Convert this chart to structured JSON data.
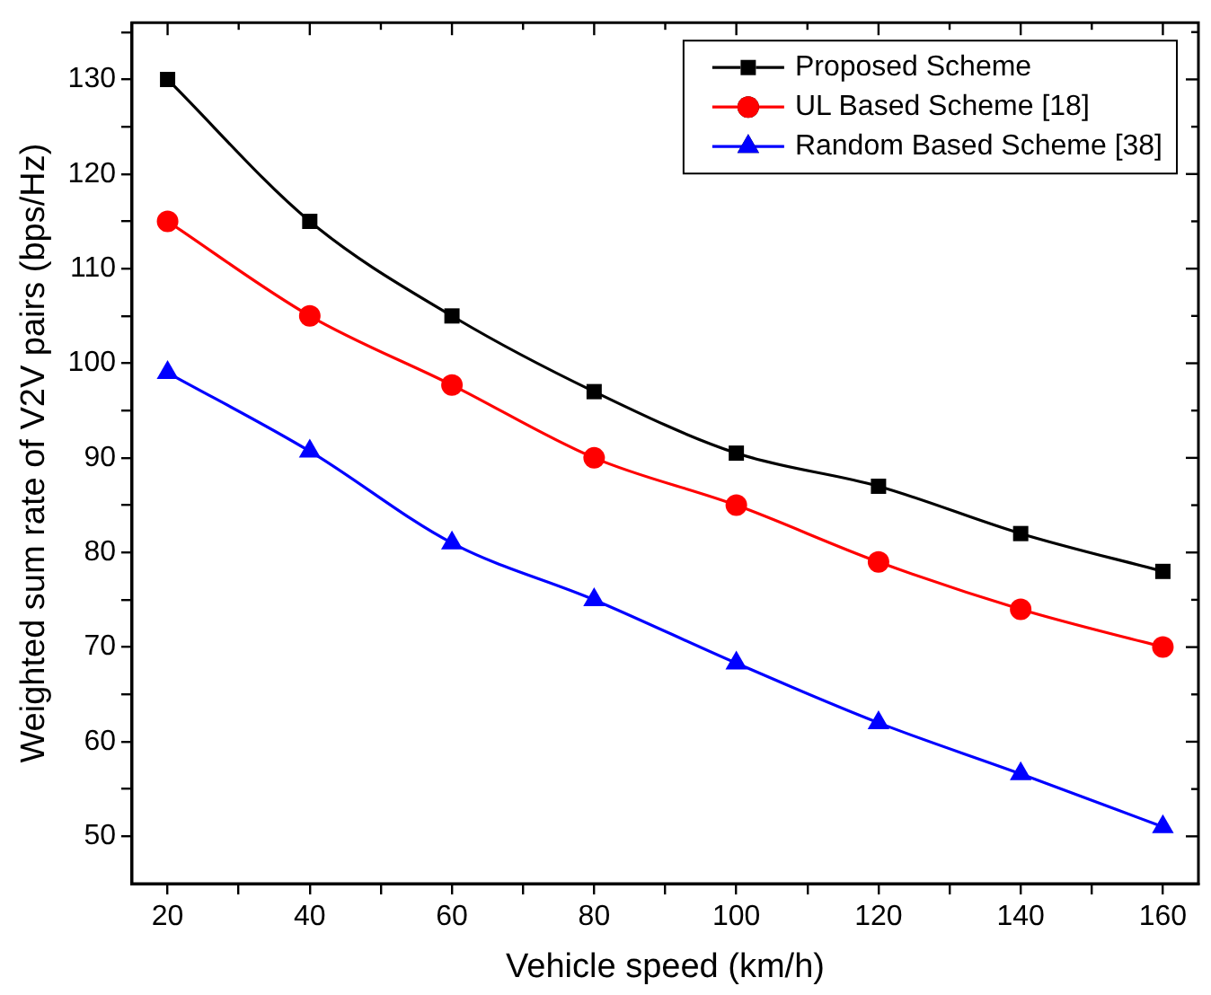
{
  "chart_data": {
    "type": "line",
    "xlabel": "Vehicle speed (km/h)",
    "ylabel": "Weighted sum rate of V2V pairs (bps/Hz)",
    "x": [
      20,
      40,
      60,
      80,
      100,
      120,
      140,
      160
    ],
    "series": [
      {
        "name": "Proposed Scheme",
        "color": "#000000",
        "marker": "square",
        "values": [
          130,
          115,
          105,
          97,
          90.5,
          87,
          82,
          78
        ]
      },
      {
        "name": "UL Based Scheme [18]",
        "color": "#ff0000",
        "marker": "circle",
        "values": [
          115,
          105,
          97.7,
          90,
          85,
          79,
          74,
          70
        ]
      },
      {
        "name": "Random Based Scheme [38]",
        "color": "#0000ff",
        "marker": "triangle",
        "values": [
          99,
          90.7,
          81,
          75,
          68.3,
          62,
          56.6,
          51
        ]
      }
    ],
    "xlim": [
      15,
      165
    ],
    "xticks": [
      20,
      {
        "value": 30,
        "label": null
      },
      40,
      {
        "value": 50,
        "label": null
      },
      60,
      {
        "value": 70,
        "label": null
      },
      80,
      {
        "value": 90,
        "label": null
      },
      100,
      {
        "value": 110,
        "label": null
      },
      120,
      {
        "value": 130,
        "label": null
      },
      140,
      {
        "value": 150,
        "label": null
      },
      160
    ],
    "ylim": [
      45,
      136
    ],
    "yticks": [
      50,
      {
        "value": 55,
        "label": null
      },
      60,
      {
        "value": 65,
        "label": null
      },
      70,
      {
        "value": 75,
        "label": null
      },
      80,
      {
        "value": 85,
        "label": null
      },
      90,
      {
        "value": 95,
        "label": null
      },
      100,
      {
        "value": 105,
        "label": null
      },
      110,
      {
        "value": 115,
        "label": null
      },
      120,
      {
        "value": 125,
        "label": null
      },
      130,
      {
        "value": 135,
        "label": null
      }
    ],
    "grid": false,
    "legend": "top right",
    "line_style": "solid"
  }
}
